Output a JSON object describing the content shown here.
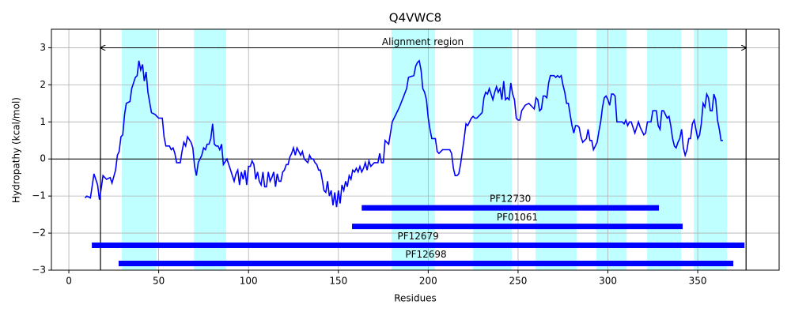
{
  "chart_data": {
    "type": "line",
    "title": "Q4VWC8",
    "xlabel": "Residues",
    "ylabel": "Hydropathy (kcal/mol)",
    "color": "#0000ff",
    "grid": true,
    "hline": 0,
    "xlim": [
      -9.7,
      395.3
    ],
    "ylim": [
      -3,
      3.5
    ],
    "xticks": [
      0,
      50,
      100,
      150,
      200,
      250,
      300,
      350
    ],
    "yticks": [
      {
        "value": -3,
        "label": "−3"
      },
      {
        "value": -2,
        "label": "−2"
      },
      {
        "value": -1,
        "label": "−1"
      },
      0,
      1,
      2,
      3
    ],
    "regions": [
      [
        29.5,
        48.9
      ],
      [
        69.6,
        87.6
      ],
      [
        179.6,
        203.8
      ],
      [
        225,
        246.5
      ],
      [
        259.7,
        282.6
      ],
      [
        293.6,
        310.4
      ],
      [
        321.8,
        340.8
      ],
      [
        347.8,
        366.3
      ]
    ],
    "region_color": "#bfffff",
    "vlines": [
      17.6,
      376.9
    ],
    "arrow": {
      "x": [
        17.6,
        376.9
      ],
      "y": 3
    },
    "annotation": {
      "text": "Alignment region",
      "x": 197,
      "y": 3.15
    },
    "domains": [
      {
        "name": "PF12730",
        "start": 163,
        "end": 328.4,
        "y": -1.32
      },
      {
        "name": "PF01061",
        "start": 157.6,
        "end": 341.6,
        "y": -1.82
      },
      {
        "name": "PF12679",
        "start": 12.8,
        "end": 376,
        "y": -2.33
      },
      {
        "name": "PF12698",
        "start": 27.7,
        "end": 369.8,
        "y": -2.82
      }
    ],
    "domain_color": "#0000ff",
    "x": [
      9,
      10,
      12,
      14,
      16,
      17,
      18,
      19,
      21,
      23,
      24,
      26,
      27,
      28,
      29,
      30,
      31,
      32,
      34,
      35,
      37,
      38,
      39,
      40,
      41,
      42,
      43,
      44,
      46,
      48,
      50,
      52,
      53,
      54,
      56,
      57,
      58,
      59,
      60,
      62,
      63,
      64,
      65,
      66,
      68,
      69,
      70,
      71,
      72,
      73,
      74,
      75,
      76,
      77,
      78,
      79,
      80,
      81,
      82,
      83,
      84,
      85,
      86,
      88,
      90,
      92,
      93,
      94,
      95,
      96,
      97,
      98,
      99,
      100,
      101,
      102,
      103,
      104,
      105,
      106,
      107,
      108,
      109,
      110,
      111,
      112,
      113,
      114,
      115,
      116,
      117,
      118,
      119,
      120,
      121,
      122,
      123,
      124,
      125,
      126,
      127,
      128,
      129,
      130,
      131,
      132,
      133,
      134,
      135,
      136,
      137,
      138,
      139,
      140,
      141,
      142,
      143,
      144,
      145,
      146,
      147,
      148,
      149,
      150,
      151,
      152,
      153,
      154,
      155,
      156,
      157,
      158,
      159,
      160,
      161,
      162,
      163,
      164,
      165,
      166,
      167,
      168,
      170,
      172,
      173,
      174,
      175,
      176,
      178,
      180,
      182,
      184,
      186,
      188,
      189,
      190,
      192,
      193,
      194,
      195,
      196,
      197,
      198,
      199,
      200,
      201,
      202,
      203,
      204,
      205,
      206,
      207,
      208,
      210,
      212,
      213,
      214,
      215,
      216,
      217,
      218,
      219,
      220,
      221,
      222,
      224,
      225,
      226,
      227,
      228,
      229,
      230,
      231,
      232,
      233,
      234,
      236,
      237,
      238,
      239,
      240,
      241,
      242,
      243,
      244,
      245,
      246,
      247,
      248,
      249,
      250,
      251,
      252,
      254,
      256,
      258,
      259,
      260,
      261,
      262,
      263,
      264,
      265,
      266,
      267,
      268,
      270,
      271,
      272,
      273,
      274,
      275,
      276,
      277,
      278,
      279,
      280,
      281,
      282,
      283,
      284,
      285,
      286,
      287,
      288,
      289,
      290,
      291,
      292,
      293,
      294,
      295,
      296,
      297,
      298,
      299,
      300,
      301,
      302,
      303,
      304,
      305,
      306,
      307,
      308,
      309,
      310,
      311,
      312,
      313,
      314,
      315,
      316,
      317,
      318,
      319,
      320,
      321,
      322,
      323,
      324,
      325,
      326,
      327,
      328,
      329,
      330,
      331,
      332,
      333,
      334,
      335,
      336,
      337,
      338,
      339,
      340,
      341,
      342,
      343,
      344,
      345,
      346,
      347,
      348,
      349,
      350,
      351,
      352,
      353,
      354,
      355,
      356,
      357,
      358,
      359,
      360,
      361,
      362,
      363,
      364
    ],
    "values": [
      -1.05,
      -1.0,
      -1.05,
      -0.4,
      -0.7,
      -1.1,
      -0.8,
      -0.45,
      -0.55,
      -0.5,
      -0.65,
      -0.3,
      0.1,
      0.2,
      0.6,
      0.65,
      1.2,
      1.5,
      1.55,
      1.9,
      2.2,
      2.25,
      2.65,
      2.4,
      2.55,
      2.1,
      2.35,
      1.8,
      1.25,
      1.2,
      1.1,
      1.1,
      0.6,
      0.35,
      0.35,
      0.25,
      0.3,
      0.15,
      -0.1,
      -0.1,
      0.2,
      0.45,
      0.35,
      0.6,
      0.45,
      0.3,
      -0.2,
      -0.45,
      -0.1,
      0.0,
      0.1,
      0.3,
      0.25,
      0.4,
      0.4,
      0.55,
      0.95,
      0.4,
      0.35,
      0.35,
      0.25,
      0.4,
      -0.15,
      0.0,
      -0.3,
      -0.6,
      -0.4,
      -0.3,
      -0.7,
      -0.35,
      -0.55,
      -0.3,
      -0.7,
      -0.2,
      -0.2,
      -0.05,
      -0.15,
      -0.55,
      -0.35,
      -0.6,
      -0.7,
      -0.35,
      -0.75,
      -0.75,
      -0.35,
      -0.6,
      -0.5,
      -0.35,
      -0.75,
      -0.4,
      -0.6,
      -0.6,
      -0.35,
      -0.3,
      -0.15,
      -0.15,
      0.05,
      0.15,
      0.3,
      0.1,
      0.3,
      0.2,
      0.1,
      0.2,
      0.0,
      -0.05,
      -0.1,
      0.1,
      0.0,
      0.0,
      -0.1,
      -0.15,
      -0.3,
      -0.3,
      -0.55,
      -0.85,
      -0.9,
      -0.6,
      -1.0,
      -0.85,
      -1.25,
      -0.9,
      -1.3,
      -0.85,
      -1.2,
      -0.7,
      -0.85,
      -0.6,
      -0.75,
      -0.45,
      -0.55,
      -0.3,
      -0.35,
      -0.25,
      -0.35,
      -0.2,
      -0.35,
      -0.25,
      -0.1,
      -0.3,
      -0.05,
      -0.2,
      -0.1,
      -0.1,
      0.15,
      -0.1,
      -0.1,
      0.5,
      0.4,
      1.0,
      1.2,
      1.4,
      1.65,
      1.9,
      2.2,
      2.22,
      2.25,
      2.5,
      2.6,
      2.65,
      2.4,
      1.9,
      1.8,
      1.6,
      1.1,
      0.8,
      0.55,
      0.55,
      0.55,
      0.2,
      0.15,
      0.2,
      0.25,
      0.25,
      0.25,
      0.15,
      -0.25,
      -0.45,
      -0.45,
      -0.4,
      -0.15,
      0.2,
      0.55,
      0.95,
      0.9,
      1.1,
      1.15,
      1.1,
      1.1,
      1.15,
      1.2,
      1.25,
      1.65,
      1.8,
      1.75,
      1.9,
      1.6,
      1.8,
      1.95,
      1.8,
      1.9,
      1.6,
      2.1,
      1.6,
      1.65,
      1.6,
      2.05,
      1.75,
      1.6,
      1.1,
      1.05,
      1.05,
      1.3,
      1.45,
      1.5,
      1.4,
      1.35,
      1.65,
      1.6,
      1.3,
      1.35,
      1.7,
      1.7,
      1.65,
      2.05,
      2.25,
      2.25,
      2.2,
      2.25,
      2.2,
      2.25,
      2.0,
      1.8,
      1.5,
      1.5,
      1.2,
      0.9,
      0.7,
      0.9,
      0.9,
      0.85,
      0.6,
      0.45,
      0.5,
      0.55,
      0.8,
      0.5,
      0.5,
      0.25,
      0.35,
      0.45,
      0.75,
      1.0,
      1.4,
      1.65,
      1.7,
      1.6,
      1.45,
      1.75,
      1.75,
      1.7,
      1.0,
      1.0,
      1.0,
      1.0,
      0.95,
      1.05,
      0.9,
      1.0,
      1.0,
      0.85,
      0.7,
      0.85,
      1.0,
      0.85,
      0.75,
      0.65,
      0.7,
      1.0,
      1.0,
      1.0,
      1.3,
      1.3,
      1.3,
      0.9,
      0.8,
      1.3,
      1.3,
      1.2,
      1.1,
      1.15,
      0.9,
      0.55,
      0.35,
      0.3,
      0.45,
      0.55,
      0.8,
      0.3,
      0.1,
      0.25,
      0.55,
      0.55,
      0.95,
      1.05,
      0.8,
      0.55,
      0.65,
      0.95,
      1.5,
      1.4,
      1.75,
      1.65,
      1.3,
      1.3,
      1.75,
      1.6,
      1.05,
      0.8,
      0.5,
      0.5
    ]
  }
}
